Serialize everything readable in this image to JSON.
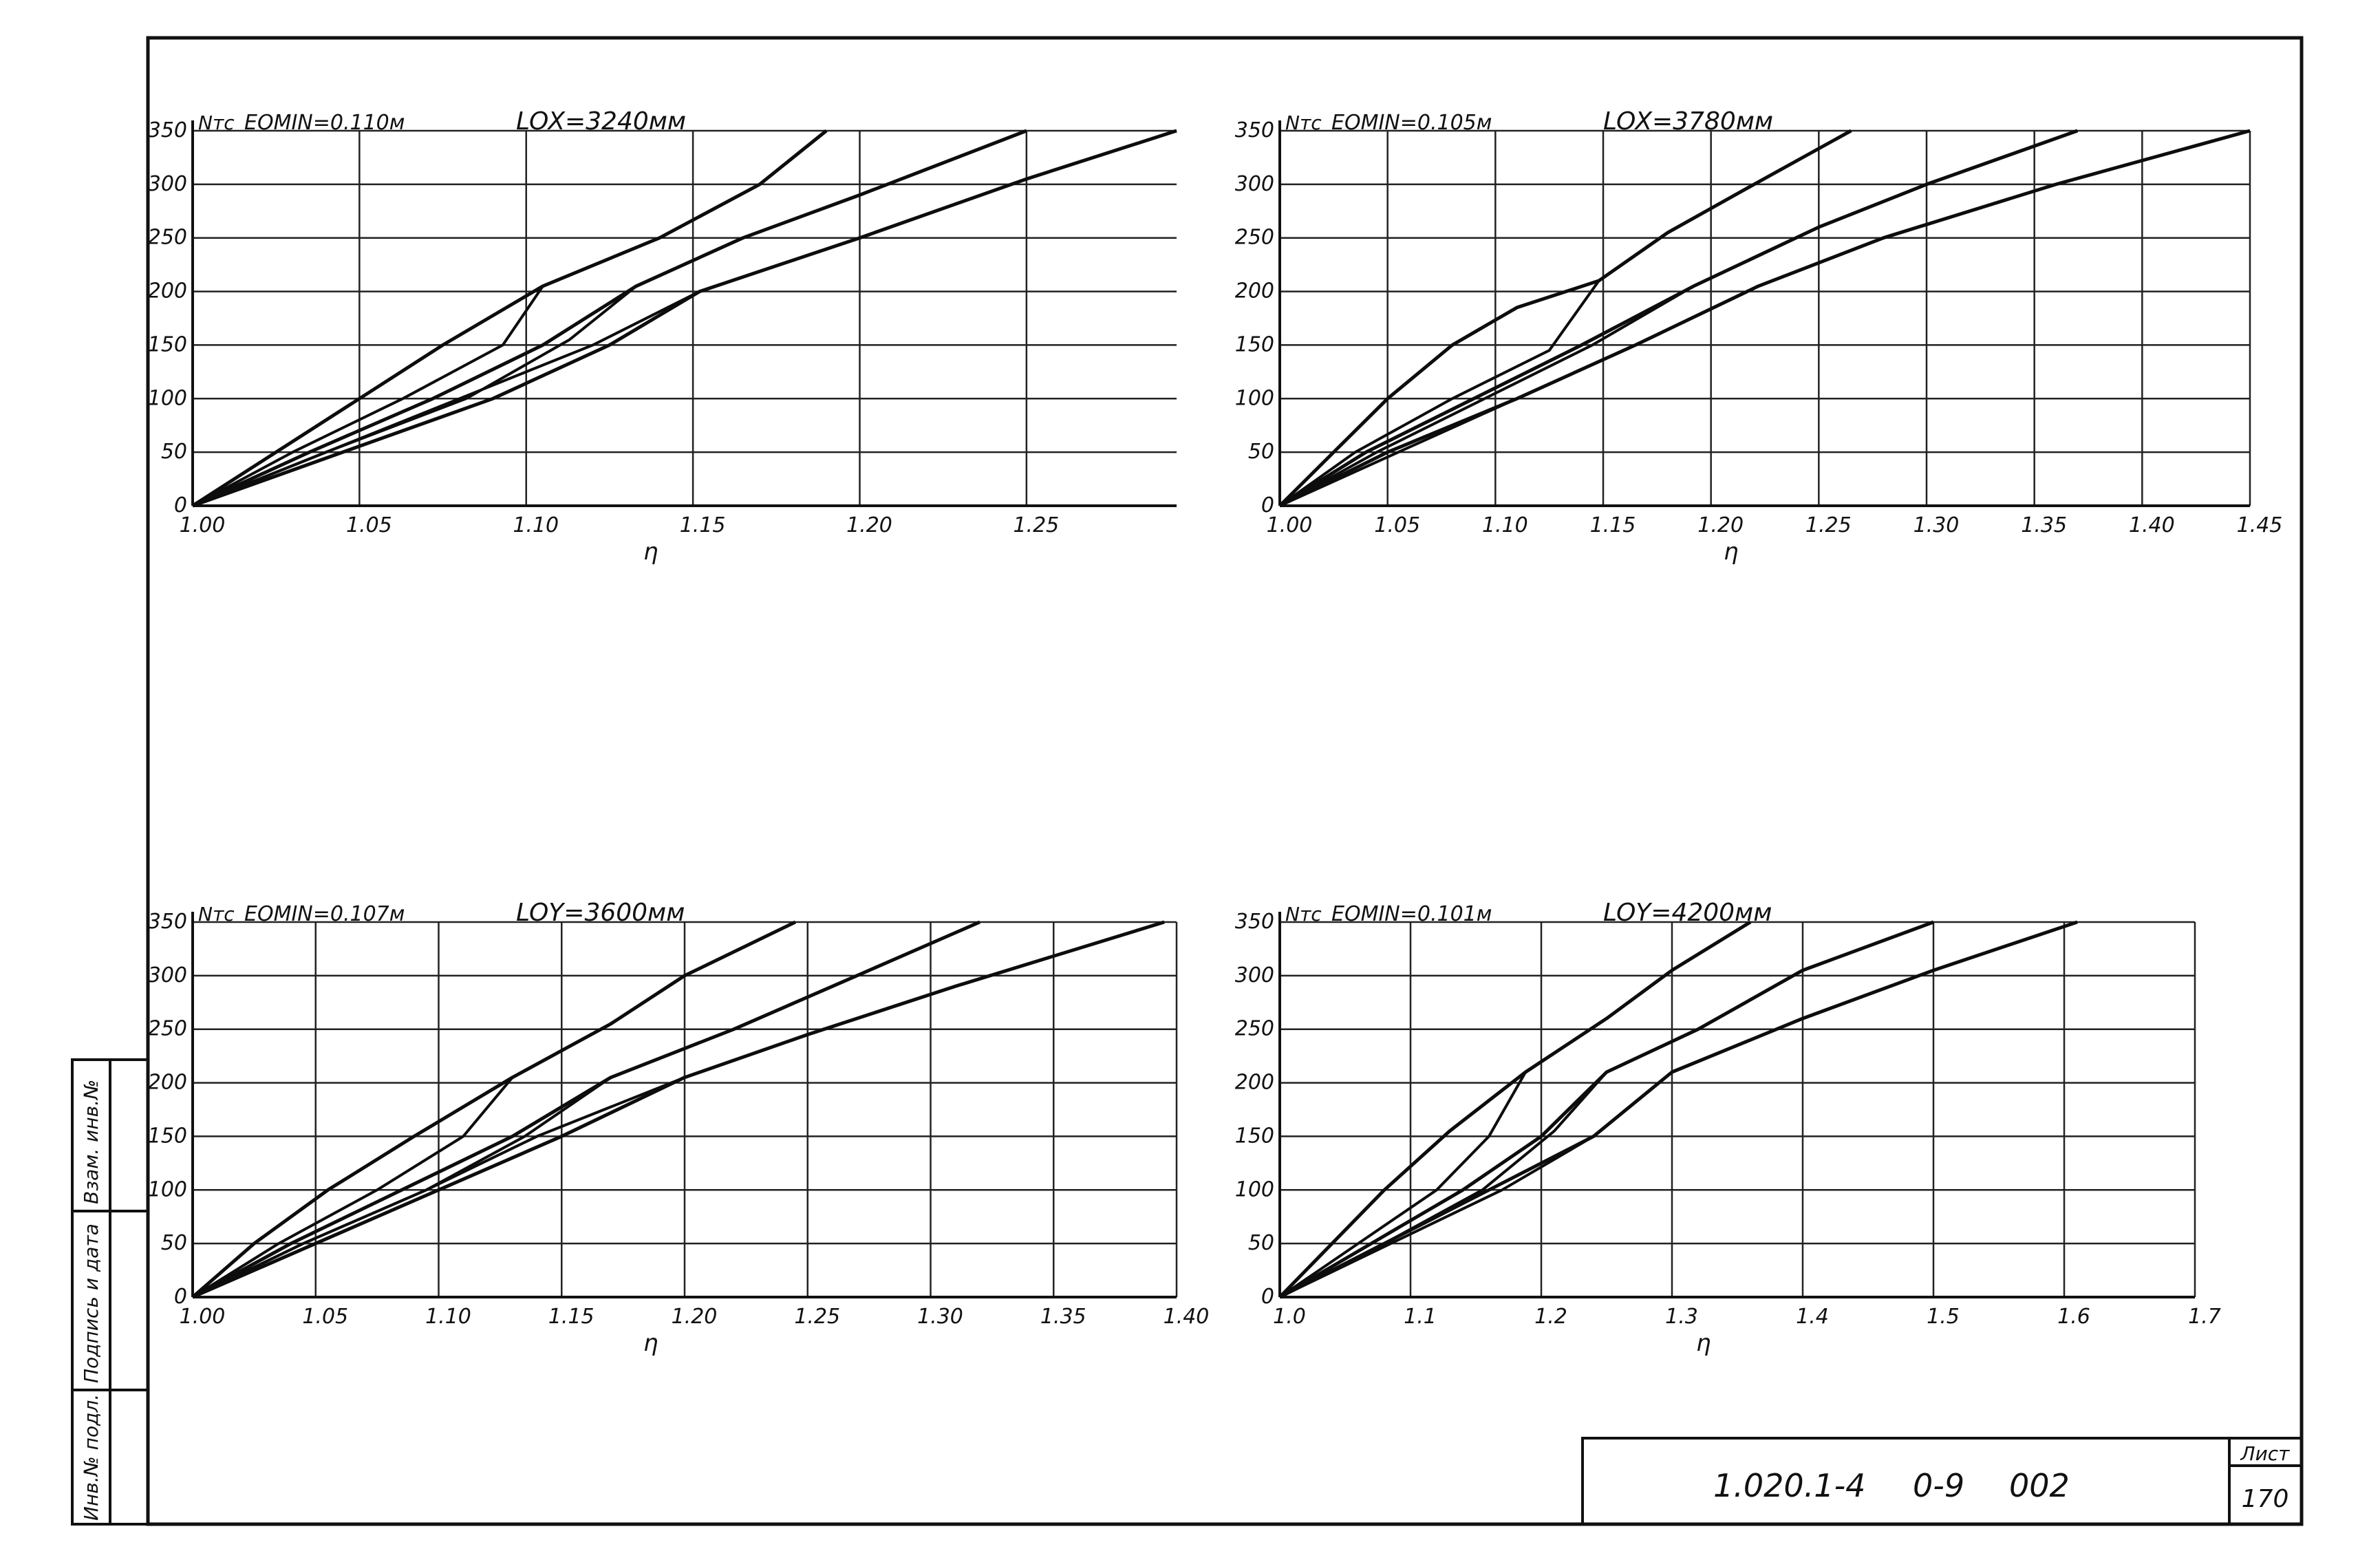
{
  "stamp": {
    "doc_code": "1.020.1-4",
    "doc_number": "0-9",
    "doc_sheet_code": "002",
    "sheet_label": "Лист",
    "sheet_number": "170"
  },
  "side_strip": {
    "fields": [
      "Инв.№ подл.",
      "Подпись и дата",
      "Взам. инв.№"
    ]
  },
  "chart_data": [
    {
      "type": "line",
      "title_left": "EOMIN=0.110м",
      "title_right": "LOX=3240мм",
      "ylabel": "Nтс",
      "xlabel": "η",
      "xlim": [
        1.0,
        1.295
      ],
      "ylim": [
        0,
        350
      ],
      "xticks": [
        1.0,
        1.05,
        1.1,
        1.15,
        1.2,
        1.25
      ],
      "xticklabels": [
        "1.00",
        "1.05",
        "1.10",
        "1.15",
        "1.20",
        "1.25"
      ],
      "yticks": [
        0,
        50,
        100,
        150,
        200,
        250,
        300,
        350
      ],
      "yticklabels": [
        "0",
        "50",
        "100",
        "150",
        "200",
        "250",
        "300",
        "350"
      ],
      "grid": true,
      "series": [
        {
          "points": [
            [
              1.0,
              0
            ],
            [
              1.025,
              50
            ],
            [
              1.05,
              100
            ],
            [
              1.075,
              150
            ],
            [
              1.105,
              205
            ],
            [
              1.14,
              250
            ],
            [
              1.17,
              300
            ],
            [
              1.19,
              350
            ]
          ]
        },
        {
          "points": [
            [
              1.0,
              0
            ],
            [
              1.03,
              50
            ],
            [
              1.063,
              100
            ],
            [
              1.093,
              150
            ],
            [
              1.105,
              205
            ]
          ]
        },
        {
          "points": [
            [
              1.0,
              0
            ],
            [
              1.035,
              50
            ],
            [
              1.072,
              100
            ],
            [
              1.105,
              150
            ],
            [
              1.133,
              205
            ],
            [
              1.165,
              250
            ],
            [
              1.2,
              290
            ],
            [
              1.25,
              350
            ]
          ]
        },
        {
          "points": [
            [
              1.0,
              0
            ],
            [
              1.04,
              50
            ],
            [
              1.082,
              100
            ],
            [
              1.113,
              155
            ],
            [
              1.133,
              205
            ]
          ]
        },
        {
          "points": [
            [
              1.0,
              0
            ],
            [
              1.045,
              50
            ],
            [
              1.09,
              100
            ],
            [
              1.125,
              150
            ],
            [
              1.152,
              200
            ],
            [
              1.2,
              250
            ],
            [
              1.25,
              305
            ],
            [
              1.295,
              350
            ]
          ]
        },
        {
          "points": [
            [
              1.0,
              0
            ],
            [
              1.04,
              50
            ],
            [
              1.08,
              100
            ],
            [
              1.12,
              150
            ],
            [
              1.152,
              200
            ]
          ]
        }
      ]
    },
    {
      "type": "line",
      "title_left": "EOMIN=0.105м",
      "title_right": "LOX=3780мм",
      "ylabel": "Nтс",
      "xlabel": "η",
      "xlim": [
        1.0,
        1.45
      ],
      "ylim": [
        0,
        350
      ],
      "xticks": [
        1.0,
        1.05,
        1.1,
        1.15,
        1.2,
        1.25,
        1.3,
        1.35,
        1.4,
        1.45
      ],
      "xticklabels": [
        "1.00",
        "1.05",
        "1.10",
        "1.15",
        "1.20",
        "1.25",
        "1.30",
        "1.35",
        "1.40",
        "1.45"
      ],
      "yticks": [
        0,
        50,
        100,
        150,
        200,
        250,
        300,
        350
      ],
      "yticklabels": [
        "0",
        "50",
        "100",
        "150",
        "200",
        "250",
        "300",
        "350"
      ],
      "grid": true,
      "series": [
        {
          "points": [
            [
              1.0,
              0
            ],
            [
              1.025,
              50
            ],
            [
              1.05,
              100
            ],
            [
              1.08,
              150
            ],
            [
              1.11,
              185
            ],
            [
              1.148,
              210
            ],
            [
              1.18,
              255
            ],
            [
              1.22,
              300
            ],
            [
              1.265,
              350
            ]
          ]
        },
        {
          "points": [
            [
              1.0,
              0
            ],
            [
              1.035,
              50
            ],
            [
              1.08,
              100
            ],
            [
              1.125,
              145
            ],
            [
              1.148,
              210
            ]
          ]
        },
        {
          "points": [
            [
              1.0,
              0
            ],
            [
              1.04,
              50
            ],
            [
              1.09,
              100
            ],
            [
              1.14,
              150
            ],
            [
              1.192,
              205
            ],
            [
              1.25,
              260
            ],
            [
              1.3,
              300
            ],
            [
              1.37,
              350
            ]
          ]
        },
        {
          "points": [
            [
              1.0,
              0
            ],
            [
              1.045,
              50
            ],
            [
              1.095,
              100
            ],
            [
              1.145,
              150
            ],
            [
              1.192,
              205
            ]
          ]
        },
        {
          "points": [
            [
              1.0,
              0
            ],
            [
              1.05,
              50
            ],
            [
              1.11,
              100
            ],
            [
              1.165,
              150
            ],
            [
              1.222,
              205
            ],
            [
              1.28,
              250
            ],
            [
              1.36,
              300
            ],
            [
              1.45,
              350
            ]
          ]
        },
        {
          "points": [
            [
              1.0,
              0
            ],
            [
              1.055,
              50
            ],
            [
              1.11,
              100
            ],
            [
              1.165,
              150
            ],
            [
              1.222,
              205
            ]
          ]
        }
      ]
    },
    {
      "type": "line",
      "title_left": "EOMIN=0.107м",
      "title_right": "LOY=3600мм",
      "ylabel": "Nтс",
      "xlabel": "η",
      "xlim": [
        1.0,
        1.4
      ],
      "ylim": [
        0,
        350
      ],
      "xticks": [
        1.0,
        1.05,
        1.1,
        1.15,
        1.2,
        1.25,
        1.3,
        1.35,
        1.4
      ],
      "xticklabels": [
        "1.00",
        "1.05",
        "1.10",
        "1.15",
        "1.20",
        "1.25",
        "1.30",
        "1.35",
        "1.40"
      ],
      "yticks": [
        0,
        50,
        100,
        150,
        200,
        250,
        300,
        350
      ],
      "yticklabels": [
        "0",
        "50",
        "100",
        "150",
        "200",
        "250",
        "300",
        "350"
      ],
      "grid": true,
      "series": [
        {
          "points": [
            [
              1.0,
              0
            ],
            [
              1.025,
              50
            ],
            [
              1.055,
              100
            ],
            [
              1.09,
              150
            ],
            [
              1.13,
              205
            ],
            [
              1.17,
              255
            ],
            [
              1.2,
              300
            ],
            [
              1.245,
              350
            ]
          ]
        },
        {
          "points": [
            [
              1.0,
              0
            ],
            [
              1.035,
              50
            ],
            [
              1.075,
              100
            ],
            [
              1.11,
              150
            ],
            [
              1.13,
              205
            ]
          ]
        },
        {
          "points": [
            [
              1.0,
              0
            ],
            [
              1.04,
              50
            ],
            [
              1.085,
              100
            ],
            [
              1.13,
              150
            ],
            [
              1.17,
              205
            ],
            [
              1.22,
              250
            ],
            [
              1.27,
              300
            ],
            [
              1.32,
              350
            ]
          ]
        },
        {
          "points": [
            [
              1.0,
              0
            ],
            [
              1.045,
              50
            ],
            [
              1.095,
              100
            ],
            [
              1.135,
              150
            ],
            [
              1.17,
              205
            ]
          ]
        },
        {
          "points": [
            [
              1.0,
              0
            ],
            [
              1.05,
              50
            ],
            [
              1.1,
              100
            ],
            [
              1.15,
              150
            ],
            [
              1.2,
              205
            ],
            [
              1.25,
              245
            ],
            [
              1.31,
              290
            ],
            [
              1.395,
              350
            ]
          ]
        },
        {
          "points": [
            [
              1.0,
              0
            ],
            [
              1.045,
              50
            ],
            [
              1.095,
              100
            ],
            [
              1.14,
              150
            ],
            [
              1.2,
              205
            ]
          ]
        }
      ]
    },
    {
      "type": "line",
      "title_left": "EOMIN=0.101м",
      "title_right": "LOY=4200мм",
      "ylabel": "Nтс",
      "xlabel": "η",
      "xlim": [
        1.0,
        1.7
      ],
      "ylim": [
        0,
        350
      ],
      "xticks": [
        1.0,
        1.1,
        1.2,
        1.3,
        1.4,
        1.5,
        1.6,
        1.7
      ],
      "xticklabels": [
        "1.0",
        "1.1",
        "1.2",
        "1.3",
        "1.4",
        "1.5",
        "1.6",
        "1.7"
      ],
      "yticks": [
        0,
        50,
        100,
        150,
        200,
        250,
        300,
        350
      ],
      "yticklabels": [
        "0",
        "50",
        "100",
        "150",
        "200",
        "250",
        "300",
        "350"
      ],
      "grid": true,
      "series": [
        {
          "points": [
            [
              1.0,
              0
            ],
            [
              1.04,
              50
            ],
            [
              1.08,
              100
            ],
            [
              1.13,
              155
            ],
            [
              1.188,
              210
            ],
            [
              1.25,
              260
            ],
            [
              1.3,
              305
            ],
            [
              1.36,
              350
            ]
          ]
        },
        {
          "points": [
            [
              1.0,
              0
            ],
            [
              1.06,
              50
            ],
            [
              1.12,
              100
            ],
            [
              1.16,
              150
            ],
            [
              1.188,
              210
            ]
          ]
        },
        {
          "points": [
            [
              1.0,
              0
            ],
            [
              1.07,
              50
            ],
            [
              1.14,
              100
            ],
            [
              1.2,
              150
            ],
            [
              1.25,
              210
            ],
            [
              1.32,
              250
            ],
            [
              1.4,
              305
            ],
            [
              1.5,
              350
            ]
          ]
        },
        {
          "points": [
            [
              1.0,
              0
            ],
            [
              1.08,
              50
            ],
            [
              1.155,
              100
            ],
            [
              1.21,
              155
            ],
            [
              1.25,
              210
            ]
          ]
        },
        {
          "points": [
            [
              1.0,
              0
            ],
            [
              1.08,
              50
            ],
            [
              1.16,
              100
            ],
            [
              1.24,
              150
            ],
            [
              1.3,
              210
            ],
            [
              1.4,
              260
            ],
            [
              1.5,
              305
            ],
            [
              1.61,
              350
            ]
          ]
        },
        {
          "points": [
            [
              1.0,
              0
            ],
            [
              1.085,
              50
            ],
            [
              1.17,
              100
            ],
            [
              1.24,
              150
            ],
            [
              1.3,
              210
            ]
          ]
        }
      ]
    }
  ]
}
